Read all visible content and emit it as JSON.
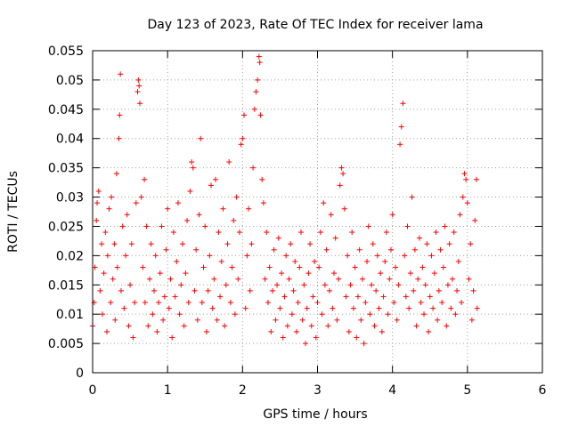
{
  "chart_data": {
    "type": "scatter",
    "title": "Day 123 of 2023, Rate Of TEC Index for receiver lama",
    "xlabel": "GPS time / hours",
    "ylabel": "ROTI / TECUs",
    "xlim": [
      0,
      6
    ],
    "ylim": [
      0,
      0.055
    ],
    "xticks": [
      0,
      1,
      2,
      3,
      4,
      5,
      6
    ],
    "xtick_labels": [
      "0",
      "1",
      "2",
      "3",
      "4",
      "5",
      "6"
    ],
    "yticks": [
      0,
      0.005,
      0.01,
      0.015,
      0.02,
      0.025,
      0.03,
      0.035,
      0.04,
      0.045,
      0.05,
      0.055
    ],
    "ytick_labels": [
      "0",
      "0.005",
      "0.01",
      "0.015",
      "0.02",
      "0.025",
      "0.03",
      "0.035",
      "0.04",
      "0.045",
      "0.05",
      "0.055"
    ],
    "grid": true,
    "marker": "+",
    "color": "#ff0000",
    "series": [
      {
        "name": "ROTI",
        "points": [
          [
            0.0,
            0.008
          ],
          [
            0.02,
            0.012
          ],
          [
            0.03,
            0.018
          ],
          [
            0.05,
            0.026
          ],
          [
            0.06,
            0.029
          ],
          [
            0.08,
            0.031
          ],
          [
            0.1,
            0.014
          ],
          [
            0.12,
            0.022
          ],
          [
            0.13,
            0.01
          ],
          [
            0.15,
            0.017
          ],
          [
            0.17,
            0.024
          ],
          [
            0.19,
            0.007
          ],
          [
            0.2,
            0.02
          ],
          [
            0.22,
            0.028
          ],
          [
            0.24,
            0.012
          ],
          [
            0.25,
            0.03
          ],
          [
            0.27,
            0.016
          ],
          [
            0.29,
            0.022
          ],
          [
            0.3,
            0.009
          ],
          [
            0.32,
            0.034
          ],
          [
            0.33,
            0.018
          ],
          [
            0.35,
            0.04
          ],
          [
            0.36,
            0.044
          ],
          [
            0.37,
            0.051
          ],
          [
            0.38,
            0.014
          ],
          [
            0.4,
            0.025
          ],
          [
            0.42,
            0.011
          ],
          [
            0.44,
            0.02
          ],
          [
            0.46,
            0.027
          ],
          [
            0.48,
            0.008
          ],
          [
            0.5,
            0.015
          ],
          [
            0.52,
            0.022
          ],
          [
            0.54,
            0.006
          ],
          [
            0.56,
            0.012
          ],
          [
            0.58,
            0.029
          ],
          [
            0.6,
            0.048
          ],
          [
            0.61,
            0.05
          ],
          [
            0.62,
            0.049
          ],
          [
            0.63,
            0.046
          ],
          [
            0.65,
            0.03
          ],
          [
            0.67,
            0.018
          ],
          [
            0.69,
            0.033
          ],
          [
            0.7,
            0.012
          ],
          [
            0.72,
            0.025
          ],
          [
            0.74,
            0.008
          ],
          [
            0.76,
            0.016
          ],
          [
            0.78,
            0.022
          ],
          [
            0.8,
            0.01
          ],
          [
            0.82,
            0.014
          ],
          [
            0.84,
            0.02
          ],
          [
            0.86,
            0.007
          ],
          [
            0.88,
            0.012
          ],
          [
            0.9,
            0.017
          ],
          [
            0.92,
            0.025
          ],
          [
            0.94,
            0.009
          ],
          [
            0.96,
            0.013
          ],
          [
            0.98,
            0.021
          ],
          [
            1.0,
            0.028
          ],
          [
            1.02,
            0.011
          ],
          [
            1.04,
            0.016
          ],
          [
            1.06,
            0.006
          ],
          [
            1.08,
            0.024
          ],
          [
            1.1,
            0.013
          ],
          [
            1.12,
            0.019
          ],
          [
            1.14,
            0.029
          ],
          [
            1.16,
            0.01
          ],
          [
            1.18,
            0.015
          ],
          [
            1.2,
            0.022
          ],
          [
            1.22,
            0.008
          ],
          [
            1.24,
            0.017
          ],
          [
            1.26,
            0.026
          ],
          [
            1.28,
            0.012
          ],
          [
            1.3,
            0.031
          ],
          [
            1.32,
            0.036
          ],
          [
            1.34,
            0.035
          ],
          [
            1.36,
            0.014
          ],
          [
            1.38,
            0.021
          ],
          [
            1.4,
            0.009
          ],
          [
            1.42,
            0.027
          ],
          [
            1.44,
            0.04
          ],
          [
            1.46,
            0.012
          ],
          [
            1.48,
            0.018
          ],
          [
            1.5,
            0.025
          ],
          [
            1.52,
            0.007
          ],
          [
            1.54,
            0.014
          ],
          [
            1.56,
            0.02
          ],
          [
            1.58,
            0.032
          ],
          [
            1.6,
            0.011
          ],
          [
            1.62,
            0.016
          ],
          [
            1.64,
            0.033
          ],
          [
            1.66,
            0.009
          ],
          [
            1.68,
            0.024
          ],
          [
            1.7,
            0.013
          ],
          [
            1.72,
            0.019
          ],
          [
            1.74,
            0.028
          ],
          [
            1.76,
            0.008
          ],
          [
            1.78,
            0.015
          ],
          [
            1.8,
            0.022
          ],
          [
            1.82,
            0.036
          ],
          [
            1.84,
            0.012
          ],
          [
            1.86,
            0.018
          ],
          [
            1.88,
            0.026
          ],
          [
            1.9,
            0.01
          ],
          [
            1.92,
            0.03
          ],
          [
            1.94,
            0.016
          ],
          [
            1.96,
            0.024
          ],
          [
            1.98,
            0.039
          ],
          [
            2.0,
            0.04
          ],
          [
            2.02,
            0.044
          ],
          [
            2.04,
            0.011
          ],
          [
            2.06,
            0.02
          ],
          [
            2.08,
            0.028
          ],
          [
            2.1,
            0.014
          ],
          [
            2.12,
            0.022
          ],
          [
            2.14,
            0.035
          ],
          [
            2.16,
            0.045
          ],
          [
            2.18,
            0.048
          ],
          [
            2.2,
            0.05
          ],
          [
            2.22,
            0.054
          ],
          [
            2.23,
            0.053
          ],
          [
            2.24,
            0.044
          ],
          [
            2.26,
            0.033
          ],
          [
            2.28,
            0.029
          ],
          [
            2.3,
            0.016
          ],
          [
            2.32,
            0.024
          ],
          [
            2.34,
            0.012
          ],
          [
            2.36,
            0.018
          ],
          [
            2.38,
            0.007
          ],
          [
            2.4,
            0.014
          ],
          [
            2.42,
            0.021
          ],
          [
            2.44,
            0.009
          ],
          [
            2.46,
            0.015
          ],
          [
            2.48,
            0.023
          ],
          [
            2.5,
            0.011
          ],
          [
            2.52,
            0.017
          ],
          [
            2.54,
            0.006
          ],
          [
            2.56,
            0.013
          ],
          [
            2.58,
            0.02
          ],
          [
            2.6,
            0.008
          ],
          [
            2.62,
            0.016
          ],
          [
            2.64,
            0.022
          ],
          [
            2.66,
            0.01
          ],
          [
            2.68,
            0.014
          ],
          [
            2.7,
            0.019
          ],
          [
            2.72,
            0.007
          ],
          [
            2.74,
            0.012
          ],
          [
            2.76,
            0.018
          ],
          [
            2.78,
            0.024
          ],
          [
            2.8,
            0.009
          ],
          [
            2.82,
            0.015
          ],
          [
            2.84,
            0.005
          ],
          [
            2.86,
            0.011
          ],
          [
            2.88,
            0.017
          ],
          [
            2.9,
            0.022
          ],
          [
            2.92,
            0.008
          ],
          [
            2.94,
            0.013
          ],
          [
            2.96,
            0.019
          ],
          [
            2.98,
            0.006
          ],
          [
            3.0,
            0.012
          ],
          [
            3.02,
            0.018
          ],
          [
            3.04,
            0.024
          ],
          [
            3.06,
            0.01
          ],
          [
            3.08,
            0.029
          ],
          [
            3.1,
            0.015
          ],
          [
            3.12,
            0.021
          ],
          [
            3.14,
            0.008
          ],
          [
            3.16,
            0.014
          ],
          [
            3.18,
            0.027
          ],
          [
            3.2,
            0.011
          ],
          [
            3.22,
            0.017
          ],
          [
            3.24,
            0.023
          ],
          [
            3.26,
            0.009
          ],
          [
            3.28,
            0.016
          ],
          [
            3.3,
            0.032
          ],
          [
            3.32,
            0.035
          ],
          [
            3.34,
            0.034
          ],
          [
            3.36,
            0.028
          ],
          [
            3.38,
            0.013
          ],
          [
            3.4,
            0.02
          ],
          [
            3.42,
            0.007
          ],
          [
            3.44,
            0.015
          ],
          [
            3.46,
            0.024
          ],
          [
            3.48,
            0.011
          ],
          [
            3.5,
            0.018
          ],
          [
            3.52,
            0.006
          ],
          [
            3.54,
            0.013
          ],
          [
            3.56,
            0.021
          ],
          [
            3.58,
            0.009
          ],
          [
            3.6,
            0.016
          ],
          [
            3.62,
            0.005
          ],
          [
            3.64,
            0.012
          ],
          [
            3.66,
            0.019
          ],
          [
            3.68,
            0.025
          ],
          [
            3.7,
            0.01
          ],
          [
            3.72,
            0.015
          ],
          [
            3.74,
            0.022
          ],
          [
            3.76,
            0.008
          ],
          [
            3.78,
            0.014
          ],
          [
            3.8,
            0.02
          ],
          [
            3.82,
            0.011
          ],
          [
            3.84,
            0.017
          ],
          [
            3.86,
            0.007
          ],
          [
            3.88,
            0.013
          ],
          [
            3.9,
            0.019
          ],
          [
            3.92,
            0.024
          ],
          [
            3.94,
            0.01
          ],
          [
            3.96,
            0.016
          ],
          [
            3.98,
            0.021
          ],
          [
            4.0,
            0.027
          ],
          [
            4.02,
            0.012
          ],
          [
            4.04,
            0.018
          ],
          [
            4.06,
            0.009
          ],
          [
            4.08,
            0.015
          ],
          [
            4.1,
            0.039
          ],
          [
            4.12,
            0.042
          ],
          [
            4.14,
            0.046
          ],
          [
            4.16,
            0.02
          ],
          [
            4.18,
            0.013
          ],
          [
            4.2,
            0.025
          ],
          [
            4.22,
            0.011
          ],
          [
            4.24,
            0.017
          ],
          [
            4.26,
            0.03
          ],
          [
            4.28,
            0.014
          ],
          [
            4.3,
            0.021
          ],
          [
            4.32,
            0.008
          ],
          [
            4.34,
            0.016
          ],
          [
            4.36,
            0.023
          ],
          [
            4.38,
            0.012
          ],
          [
            4.4,
            0.018
          ],
          [
            4.42,
            0.01
          ],
          [
            4.44,
            0.015
          ],
          [
            4.46,
            0.022
          ],
          [
            4.48,
            0.007
          ],
          [
            4.5,
            0.013
          ],
          [
            4.52,
            0.02
          ],
          [
            4.54,
            0.011
          ],
          [
            4.56,
            0.017
          ],
          [
            4.58,
            0.024
          ],
          [
            4.6,
            0.009
          ],
          [
            4.62,
            0.014
          ],
          [
            4.64,
            0.021
          ],
          [
            4.66,
            0.012
          ],
          [
            4.68,
            0.018
          ],
          [
            4.7,
            0.025
          ],
          [
            4.72,
            0.008
          ],
          [
            4.74,
            0.015
          ],
          [
            4.76,
            0.022
          ],
          [
            4.78,
            0.011
          ],
          [
            4.8,
            0.016
          ],
          [
            4.82,
            0.024
          ],
          [
            4.84,
            0.01
          ],
          [
            4.86,
            0.014
          ],
          [
            4.88,
            0.019
          ],
          [
            4.9,
            0.027
          ],
          [
            4.92,
            0.012
          ],
          [
            4.94,
            0.03
          ],
          [
            4.96,
            0.034
          ],
          [
            4.98,
            0.033
          ],
          [
            5.0,
            0.029
          ],
          [
            5.02,
            0.016
          ],
          [
            5.04,
            0.022
          ],
          [
            5.06,
            0.009
          ],
          [
            5.08,
            0.014
          ],
          [
            5.1,
            0.026
          ],
          [
            5.12,
            0.033
          ],
          [
            5.13,
            0.011
          ]
        ]
      }
    ]
  }
}
